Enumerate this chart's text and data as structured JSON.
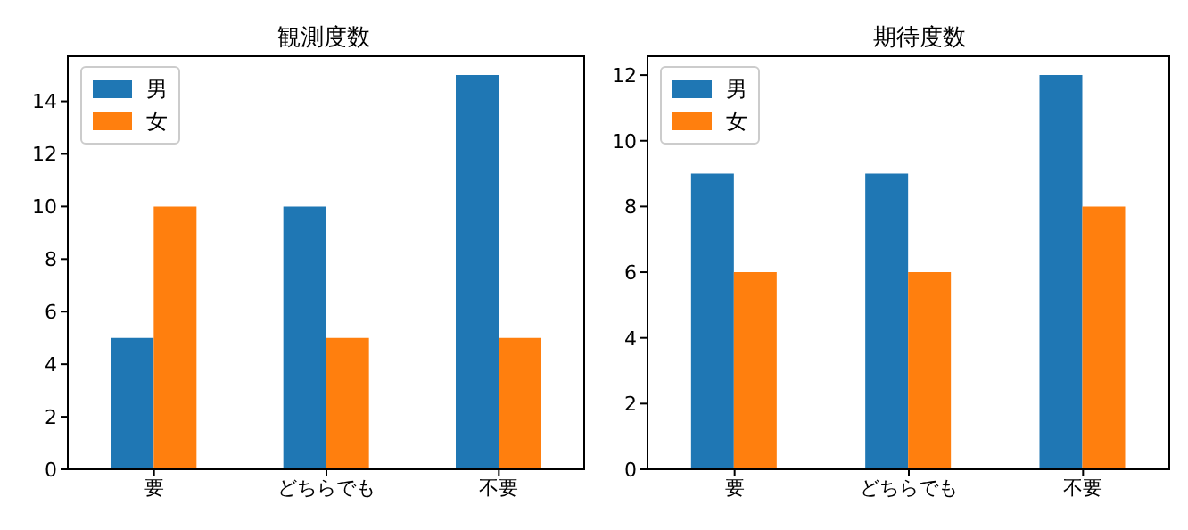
{
  "chart_data": [
    {
      "type": "bar",
      "title": "観測度数",
      "categories": [
        "要",
        "どちらでも",
        "不要"
      ],
      "series": [
        {
          "name": "男",
          "color": "#1f77b4",
          "values": [
            5,
            10,
            15
          ]
        },
        {
          "name": "女",
          "color": "#ff7f0e",
          "values": [
            10,
            5,
            5
          ]
        }
      ],
      "ylim": [
        0,
        15.75
      ],
      "yticks": [
        0,
        2,
        4,
        6,
        8,
        10,
        12,
        14
      ],
      "grid": false,
      "legend": "top left"
    },
    {
      "type": "bar",
      "title": "期待度数",
      "categories": [
        "要",
        "どちらでも",
        "不要"
      ],
      "series": [
        {
          "name": "男",
          "color": "#1f77b4",
          "values": [
            9,
            9,
            12
          ]
        },
        {
          "name": "女",
          "color": "#ff7f0e",
          "values": [
            6,
            6,
            8
          ]
        }
      ],
      "ylim": [
        0,
        12.6
      ],
      "yticks": [
        0,
        2,
        4,
        6,
        8,
        10,
        12
      ],
      "grid": false,
      "legend": "top left"
    }
  ]
}
